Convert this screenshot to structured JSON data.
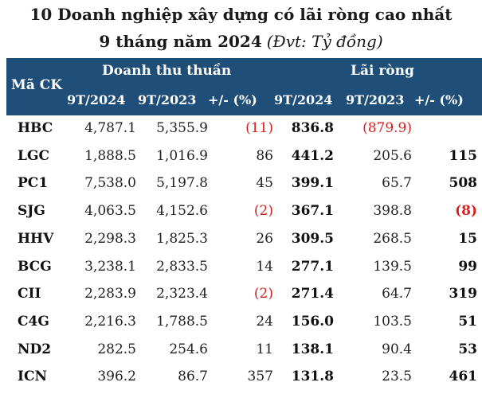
{
  "title": {
    "line1": "10 Doanh nghiệp xây dựng có lãi ròng cao nhất",
    "line2": "9 tháng năm 2024",
    "unit": "(Đvt: Tỷ đồng)"
  },
  "header": {
    "code": "Mã CK",
    "revenue_group": "Doanh thu thuần",
    "profit_group": "Lãi ròng",
    "sub": {
      "rev_2024": "9T/2024",
      "rev_2023": "9T/2023",
      "rev_change": "+/- (%)",
      "profit_2024": "9T/2024",
      "profit_2023": "9T/2023",
      "profit_change": "+/- (%)"
    }
  },
  "rows": [
    {
      "code": "HBC",
      "rev_2024": "4,787.1",
      "rev_2023": "5,355.9",
      "rev_change": "(11)",
      "profit_2024": "836.8",
      "profit_2023": "(879.9)",
      "profit_change": ""
    },
    {
      "code": "LGC",
      "rev_2024": "1,888.5",
      "rev_2023": "1,016.9",
      "rev_change": "86",
      "profit_2024": "441.2",
      "profit_2023": "205.6",
      "profit_change": "115"
    },
    {
      "code": "PC1",
      "rev_2024": "7,538.0",
      "rev_2023": "5,197.8",
      "rev_change": "45",
      "profit_2024": "399.1",
      "profit_2023": "65.7",
      "profit_change": "508"
    },
    {
      "code": "SJG",
      "rev_2024": "4,063.5",
      "rev_2023": "4,152.6",
      "rev_change": "(2)",
      "profit_2024": "367.1",
      "profit_2023": "398.8",
      "profit_change": "(8)"
    },
    {
      "code": "HHV",
      "rev_2024": "2,298.3",
      "rev_2023": "1,825.3",
      "rev_change": "26",
      "profit_2024": "309.5",
      "profit_2023": "268.5",
      "profit_change": "15"
    },
    {
      "code": "BCG",
      "rev_2024": "3,238.1",
      "rev_2023": "2,833.5",
      "rev_change": "14",
      "profit_2024": "277.1",
      "profit_2023": "139.5",
      "profit_change": "99"
    },
    {
      "code": "CII",
      "rev_2024": "2,283.9",
      "rev_2023": "2,323.4",
      "rev_change": "(2)",
      "profit_2024": "271.4",
      "profit_2023": "64.7",
      "profit_change": "319"
    },
    {
      "code": "C4G",
      "rev_2024": "2,216.3",
      "rev_2023": "1,788.5",
      "rev_change": "24",
      "profit_2024": "156.0",
      "profit_2023": "103.5",
      "profit_change": "51"
    },
    {
      "code": "ND2",
      "rev_2024": "282.5",
      "rev_2023": "254.6",
      "rev_change": "11",
      "profit_2024": "138.1",
      "profit_2023": "90.4",
      "profit_change": "53"
    },
    {
      "code": "ICN",
      "rev_2024": "396.2",
      "rev_2023": "86.7",
      "rev_change": "357",
      "profit_2024": "131.8",
      "profit_2023": "23.5",
      "profit_change": "461"
    }
  ],
  "colors": {
    "header_bg": "#1f4e79",
    "header_text": "#ffffff",
    "negative": "#d81e1e"
  }
}
